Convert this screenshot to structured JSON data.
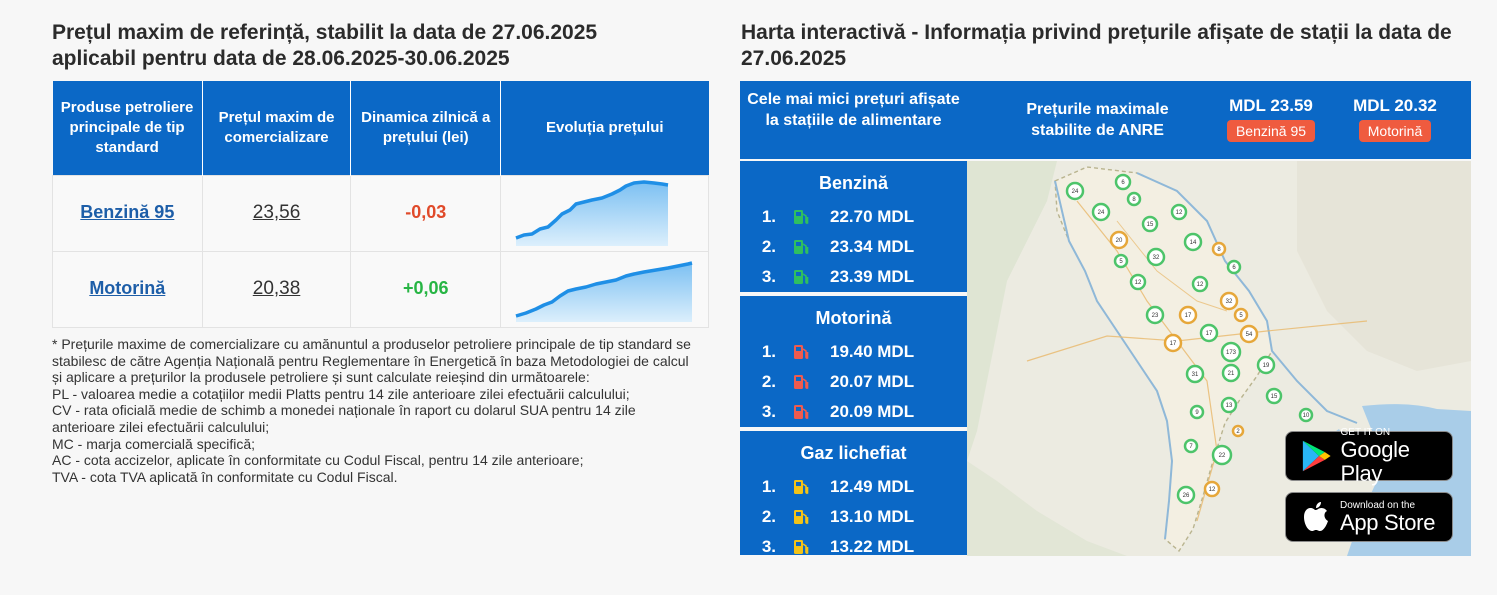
{
  "left": {
    "title_line1": "Prețul maxim de referință, stabilit la data de 27.06.2025",
    "title_line2": "aplicabil pentru data de 28.06.2025-30.06.2025",
    "table": {
      "headers": [
        "Produse petroliere principale de tip standard",
        "Prețul maxim de comercializare",
        "Dinamica zilnică a prețului (lei)",
        "Evoluția prețului"
      ],
      "rows": [
        {
          "product": "Benzină 95",
          "price": "23,56",
          "change": "-0,03",
          "trend": "down"
        },
        {
          "product": "Motorină",
          "price": "20,38",
          "change": "+0,06",
          "trend": "up"
        }
      ]
    },
    "notes": [
      "* Prețurile maxime de comercializare cu amănuntul a produselor petroliere principale de tip standard se stabilesc de către Agenția Națională pentru Reglementare în Energetică în baza Metodologiei de calcul și aplicare a prețurilor la produsele petroliere și sunt calculate reieșind din următoarele:",
      "PL - valoarea medie a cotațiilor medii Platts pentru 14 zile anterioare zilei efectuării calculului;",
      "CV - rata oficială medie de schimb a monedei naționale în raport cu dolarul SUA pentru 14 zile anterioare zilei efectuării calculului;",
      "MC - marja comercială specifică;",
      "AC - cota accizelor, aplicate în conformitate cu Codul Fiscal, pentru 14 zile anterioare;",
      "TVA - cota TVA aplicată în conformitate cu Codul Fiscal."
    ]
  },
  "right": {
    "title": "Harta interactivă - Informația privind prețurile afișate de stații la data de 27.06.2025",
    "header": {
      "lowest_label": "Cele mai mici prețuri afișate la stațiile de alimentare",
      "max_label": "Prețurile maximale stabilite de ANRE",
      "benzina_value": "MDL 23.59",
      "benzina_tag": "Benzină 95",
      "motorina_value": "MDL 20.32",
      "motorina_tag": "Motorină"
    },
    "fuels": [
      {
        "name": "Benzină",
        "color": "#2fbf5f",
        "items": [
          {
            "rank": "1.",
            "price": "22.70 MDL"
          },
          {
            "rank": "2.",
            "price": "23.34 MDL"
          },
          {
            "rank": "3.",
            "price": "23.39 MDL"
          }
        ]
      },
      {
        "name": "Motorină",
        "color": "#ef5b4f",
        "items": [
          {
            "rank": "1.",
            "price": "19.40 MDL"
          },
          {
            "rank": "2.",
            "price": "20.07 MDL"
          },
          {
            "rank": "3.",
            "price": "20.09 MDL"
          }
        ]
      },
      {
        "name": "Gaz lichefiat",
        "color": "#f2c318",
        "items": [
          {
            "rank": "1.",
            "price": "12.49 MDL"
          },
          {
            "rank": "2.",
            "price": "13.10 MDL"
          },
          {
            "rank": "3.",
            "price": "13.22 MDL"
          }
        ]
      }
    ],
    "map_markers": [
      "24",
      "6",
      "8",
      "24",
      "15",
      "12",
      "20",
      "14",
      "8",
      "5",
      "32",
      "6",
      "12",
      "12",
      "32",
      "23",
      "17",
      "5",
      "17",
      "54",
      "17",
      "173",
      "31",
      "21",
      "19",
      "15",
      "9",
      "13",
      "10",
      "7",
      "2",
      "22",
      "12",
      "26"
    ],
    "stores": {
      "google_small": "GET IT ON",
      "google_big": "Google Play",
      "apple_small": "Download on the",
      "apple_big": "App Store"
    }
  }
}
